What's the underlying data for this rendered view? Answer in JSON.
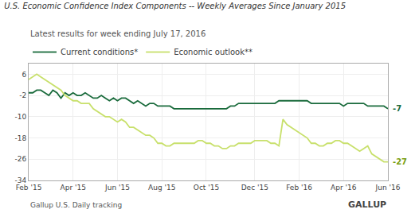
{
  "chart_data": {
    "type": "line",
    "title": "U.S. Economic Confidence Index Components -- Weekly Averages Since January 2015",
    "subtitle": "Latest results for week ending July 17, 2016",
    "categories": [
      "Feb '15",
      null,
      null,
      null,
      null,
      null,
      null,
      null,
      null,
      null,
      null,
      "Apr '15",
      null,
      null,
      null,
      null,
      null,
      null,
      null,
      null,
      null,
      null,
      "Jun '15",
      null,
      null,
      null,
      null,
      null,
      null,
      null,
      null,
      null,
      null,
      "Aug '15",
      null,
      null,
      null,
      null,
      null,
      null,
      null,
      null,
      null,
      null,
      "Oct '15",
      null,
      null,
      null,
      null,
      null,
      null,
      null,
      null,
      null,
      null,
      null,
      "Dec '15",
      null,
      null,
      null,
      null,
      null,
      null,
      null,
      null,
      null,
      null,
      "Feb '16",
      null,
      null,
      null,
      null,
      null,
      null,
      null,
      null,
      null,
      null,
      "Apr '16",
      null,
      null,
      null,
      null,
      null,
      null,
      null,
      null,
      null,
      null,
      "Jun '16"
    ],
    "series": [
      {
        "name": "Current conditions*",
        "color": "#1a6b3c",
        "values": [
          -1,
          -1,
          0,
          0,
          -1,
          -2,
          0,
          -1,
          -3,
          -1,
          -2,
          -1,
          -2,
          -2,
          -1,
          -2,
          -3,
          -3,
          -2,
          -3,
          -4,
          -3,
          -4,
          -3,
          -3,
          -4,
          -5,
          -4,
          -5,
          -6,
          -5,
          -5,
          -6,
          -6,
          -6,
          -6,
          -7,
          -7,
          -7,
          -7,
          -7,
          -7,
          -7,
          -7,
          -7,
          -7,
          -7,
          -7,
          -7,
          -7,
          -6,
          -6,
          -5,
          -5,
          -5,
          -5,
          -5,
          -5,
          -5,
          -5,
          -5,
          -5,
          -4,
          -4,
          -4,
          -4,
          -4,
          -4,
          -4,
          -4,
          -5,
          -5,
          -5,
          -5,
          -5,
          -5,
          -5,
          -5,
          -6,
          -5,
          -5,
          -5,
          -5,
          -5,
          -6,
          -6,
          -6,
          -6,
          -6,
          -7
        ]
      },
      {
        "name": "Economic outlook**",
        "color": "#c8e06b",
        "values": [
          4,
          5,
          6,
          5,
          4,
          3,
          2,
          1,
          0,
          -2,
          -3,
          -4,
          -4,
          -5,
          -5,
          -5,
          -7,
          -8,
          -9,
          -10,
          -10,
          -11,
          -12,
          -11,
          -12,
          -14,
          -14,
          -15,
          -16,
          -17,
          -17,
          -18,
          -20,
          -20,
          -21,
          -21,
          -20,
          -20,
          -20,
          -20,
          -20,
          -20,
          -19,
          -19,
          -20,
          -20,
          -21,
          -21,
          -22,
          -22,
          -21,
          -21,
          -20,
          -20,
          -20,
          -20,
          -19,
          -19,
          -19,
          -19,
          -20,
          -20,
          -21,
          -11,
          -13,
          -14,
          -15,
          -16,
          -17,
          -18,
          -20,
          -20,
          -21,
          -21,
          -20,
          -20,
          -19,
          -19,
          -20,
          -20,
          -21,
          -22,
          -23,
          -22,
          -21,
          -24,
          -25,
          -26,
          -27,
          -27
        ]
      }
    ],
    "annotations": [
      {
        "text": "-7",
        "y": -7,
        "color": "#1a6b3c"
      },
      {
        "text": "-27",
        "y": -27,
        "color": "#7a9e10"
      }
    ],
    "footer": [
      "Gallup U.S. Daily tracking",
      "GALLUP"
    ],
    "ylim": [
      -34,
      10
    ],
    "yticks": [
      6,
      -2,
      -10,
      -18,
      -26,
      -34
    ],
    "grid": true,
    "legend": "top left"
  }
}
